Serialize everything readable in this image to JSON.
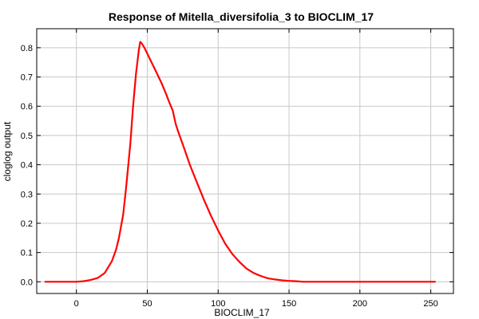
{
  "chart_data": {
    "type": "line",
    "title": "Response of Mitella_diversifolia_3 to BIOCLIM_17",
    "xlabel": "BIOCLIM_17",
    "ylabel": "cloglog output",
    "xlim": [
      -28,
      266
    ],
    "ylim": [
      -0.04,
      0.865
    ],
    "xticks": [
      0,
      50,
      100,
      150,
      200,
      250
    ],
    "yticks": [
      0.0,
      0.1,
      0.2,
      0.3,
      0.4,
      0.5,
      0.6,
      0.7,
      0.8
    ],
    "grid": true,
    "series": [
      {
        "color": "#ff0000",
        "x": [
          -22,
          0,
          5,
          10,
          15,
          20,
          25,
          28,
          30,
          33,
          35,
          38,
          40,
          42,
          44,
          45,
          46,
          48,
          50,
          52,
          55,
          58,
          60,
          63,
          65,
          68,
          70,
          72,
          75,
          80,
          85,
          90,
          95,
          100,
          105,
          110,
          115,
          120,
          125,
          130,
          135,
          140,
          145,
          150,
          155,
          160,
          170,
          200,
          230,
          253
        ],
        "y": [
          0.0,
          0.0,
          0.002,
          0.006,
          0.013,
          0.03,
          0.07,
          0.11,
          0.15,
          0.23,
          0.32,
          0.47,
          0.6,
          0.71,
          0.79,
          0.82,
          0.815,
          0.8,
          0.78,
          0.76,
          0.73,
          0.7,
          0.68,
          0.645,
          0.62,
          0.585,
          0.54,
          0.51,
          0.47,
          0.4,
          0.34,
          0.28,
          0.225,
          0.175,
          0.13,
          0.095,
          0.068,
          0.045,
          0.03,
          0.02,
          0.012,
          0.008,
          0.005,
          0.003,
          0.002,
          0.0,
          0.0,
          0.0,
          0.0,
          0.0
        ]
      }
    ]
  }
}
